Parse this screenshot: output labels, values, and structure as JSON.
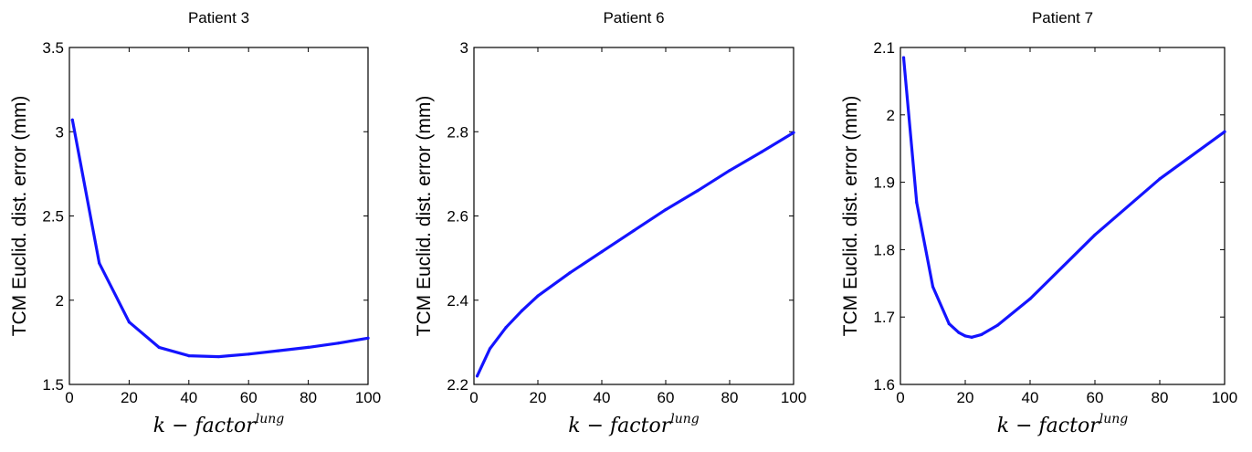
{
  "chart_data": [
    {
      "type": "line",
      "title": "Patient 3",
      "xlabel": "k − factor",
      "xlabel_sup": "lung",
      "ylabel": "TCM Euclid. dist. error (mm)",
      "xlim": [
        0,
        100
      ],
      "ylim": [
        1.5,
        3.5
      ],
      "xticks": [
        0,
        20,
        40,
        60,
        80,
        100
      ],
      "xtick_labels": [
        "0",
        "20",
        "40",
        "60",
        "80",
        "100"
      ],
      "yticks": [
        1.5,
        2,
        2.5,
        3,
        3.5
      ],
      "ytick_labels": [
        "1.5",
        "2",
        "2.5",
        "3",
        "3.5"
      ],
      "grid": false,
      "color": "#1414ff",
      "x": [
        1,
        10,
        20,
        30,
        40,
        50,
        60,
        70,
        80,
        90,
        100
      ],
      "y": [
        3.07,
        2.22,
        1.87,
        1.72,
        1.67,
        1.665,
        1.68,
        1.7,
        1.72,
        1.745,
        1.775
      ]
    },
    {
      "type": "line",
      "title": "Patient 6",
      "xlabel": "k − factor",
      "xlabel_sup": "lung",
      "ylabel": "TCM Euclid. dist. error (mm)",
      "xlim": [
        0,
        100
      ],
      "ylim": [
        2.2,
        3.0
      ],
      "xticks": [
        0,
        20,
        40,
        60,
        80,
        100
      ],
      "xtick_labels": [
        "0",
        "20",
        "40",
        "60",
        "80",
        "100"
      ],
      "yticks": [
        2.2,
        2.4,
        2.6,
        2.8,
        3.0
      ],
      "ytick_labels": [
        "2.2",
        "2.4",
        "2.6",
        "2.8",
        "3"
      ],
      "grid": false,
      "color": "#1414ff",
      "x": [
        1,
        5,
        10,
        15,
        20,
        30,
        40,
        50,
        60,
        70,
        80,
        90,
        100
      ],
      "y": [
        2.22,
        2.285,
        2.335,
        2.375,
        2.41,
        2.465,
        2.515,
        2.565,
        2.615,
        2.66,
        2.708,
        2.752,
        2.798
      ]
    },
    {
      "type": "line",
      "title": "Patient 7",
      "xlabel": "k − factor",
      "xlabel_sup": "lung",
      "ylabel": "TCM Euclid. dist. error (mm)",
      "xlim": [
        0,
        100
      ],
      "ylim": [
        1.6,
        2.1
      ],
      "xticks": [
        0,
        20,
        40,
        60,
        80,
        100
      ],
      "xtick_labels": [
        "0",
        "20",
        "40",
        "60",
        "80",
        "100"
      ],
      "yticks": [
        1.6,
        1.7,
        1.8,
        1.9,
        2.0,
        2.1
      ],
      "ytick_labels": [
        "1.6",
        "1.7",
        "1.8",
        "1.9",
        "2",
        "2.1"
      ],
      "grid": false,
      "color": "#1414ff",
      "x": [
        1,
        5,
        10,
        15,
        18,
        20,
        22,
        25,
        30,
        40,
        60,
        80,
        100
      ],
      "y": [
        2.085,
        1.87,
        1.745,
        1.69,
        1.677,
        1.672,
        1.67,
        1.674,
        1.688,
        1.727,
        1.822,
        1.905,
        1.975
      ]
    }
  ]
}
